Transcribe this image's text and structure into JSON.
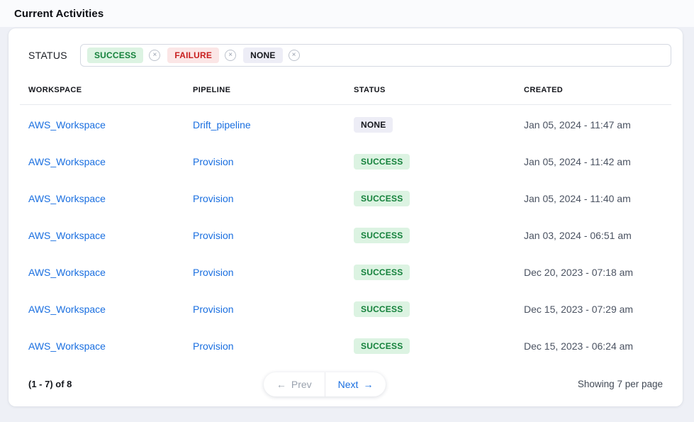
{
  "page": {
    "title": "Current Activities"
  },
  "filter": {
    "label": "STATUS",
    "tags": [
      {
        "label": "SUCCESS",
        "type": "success",
        "remove_icon": "×"
      },
      {
        "label": "FAILURE",
        "type": "failure",
        "remove_icon": "×"
      },
      {
        "label": "NONE",
        "type": "none",
        "remove_icon": "×"
      }
    ]
  },
  "table": {
    "columns": [
      "WORKSPACE",
      "PIPELINE",
      "STATUS",
      "CREATED"
    ],
    "rows": [
      {
        "workspace": "AWS_Workspace",
        "pipeline": "Drift_pipeline",
        "status": "NONE",
        "status_type": "none",
        "created": "Jan 05, 2024 - 11:47 am"
      },
      {
        "workspace": "AWS_Workspace",
        "pipeline": "Provision",
        "status": "SUCCESS",
        "status_type": "success",
        "created": "Jan 05, 2024 - 11:42 am"
      },
      {
        "workspace": "AWS_Workspace",
        "pipeline": "Provision",
        "status": "SUCCESS",
        "status_type": "success",
        "created": "Jan 05, 2024 - 11:40 am"
      },
      {
        "workspace": "AWS_Workspace",
        "pipeline": "Provision",
        "status": "SUCCESS",
        "status_type": "success",
        "created": "Jan 03, 2024 - 06:51 am"
      },
      {
        "workspace": "AWS_Workspace",
        "pipeline": "Provision",
        "status": "SUCCESS",
        "status_type": "success",
        "created": "Dec 20, 2023 - 07:18 am"
      },
      {
        "workspace": "AWS_Workspace",
        "pipeline": "Provision",
        "status": "SUCCESS",
        "status_type": "success",
        "created": "Dec 15, 2023 - 07:29 am"
      },
      {
        "workspace": "AWS_Workspace",
        "pipeline": "Provision",
        "status": "SUCCESS",
        "status_type": "success",
        "created": "Dec 15, 2023 - 06:24 am"
      }
    ]
  },
  "pagination": {
    "range_label": "(1 - 7) of 8",
    "prev": {
      "arrow_icon": "←",
      "label": "Prev"
    },
    "next": {
      "label": "Next",
      "arrow_icon": "→"
    },
    "per_page_label": "Showing 7 per page"
  },
  "colors": {
    "accent_blue": "#1a6fe0",
    "success_text": "#14813b",
    "success_bg": "#dcf3e2",
    "failure_text": "#c81e1e",
    "failure_bg": "#fbe6e6",
    "none_text": "#15171d",
    "none_bg": "#ededf6",
    "page_background": "#eef0f6",
    "card_background": "#ffffff"
  }
}
